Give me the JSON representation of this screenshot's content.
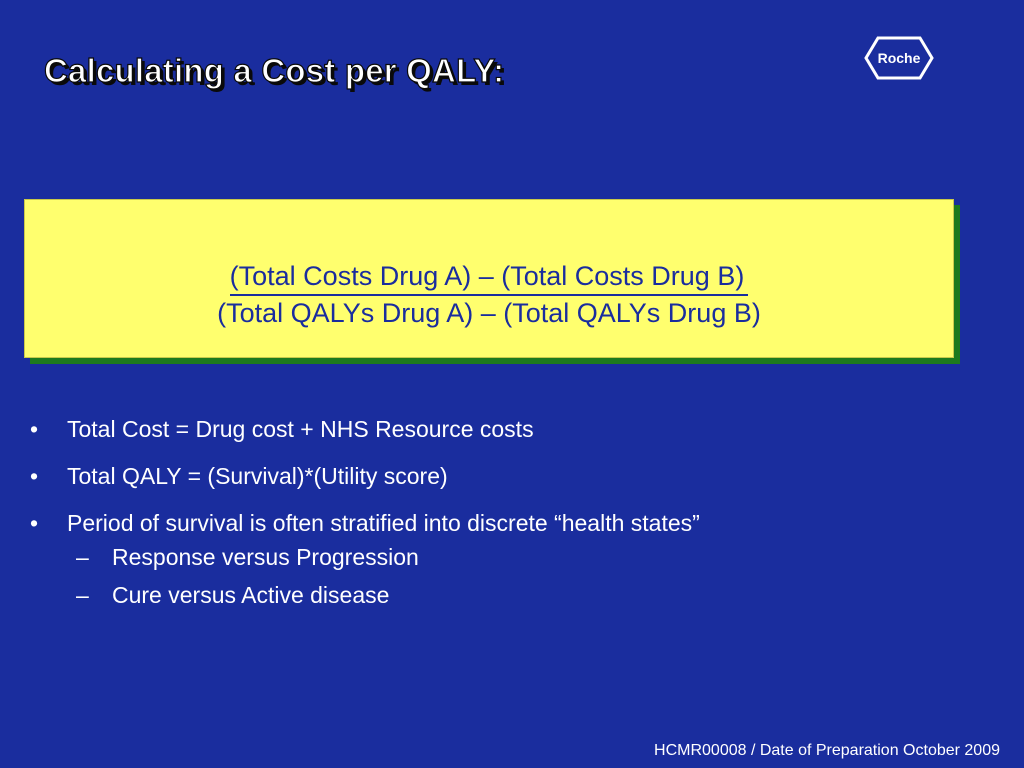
{
  "slide": {
    "title": "Calculating a Cost per QALY:",
    "logo_text": "Roche",
    "formula": {
      "numerator": "(Total Costs Drug A) – (Total Costs Drug B)",
      "denominator": "(Total QALYs Drug A) – (Total QALYs Drug B)"
    },
    "bullets": [
      {
        "marker": "•",
        "text": "Total Cost = Drug cost + NHS Resource costs"
      },
      {
        "marker": "•",
        "text": "Total QALY = (Survival)*(Utility score)"
      },
      {
        "marker": "•",
        "text": "Period of survival is often stratified into discrete “health states”"
      }
    ],
    "sub_bullets": [
      {
        "marker": "–",
        "text": "Response versus Progression"
      },
      {
        "marker": "–",
        "text": "Cure versus Active disease"
      }
    ],
    "footer": "HCMR00008 / Date of Preparation October 2009"
  },
  "colors": {
    "background": "#1a2d9e",
    "formula_box": "#ffff6e",
    "formula_shadow": "#1d7a1d",
    "text": "#ffffff"
  },
  "icons": {
    "logo": "roche-hexagon-logo"
  }
}
